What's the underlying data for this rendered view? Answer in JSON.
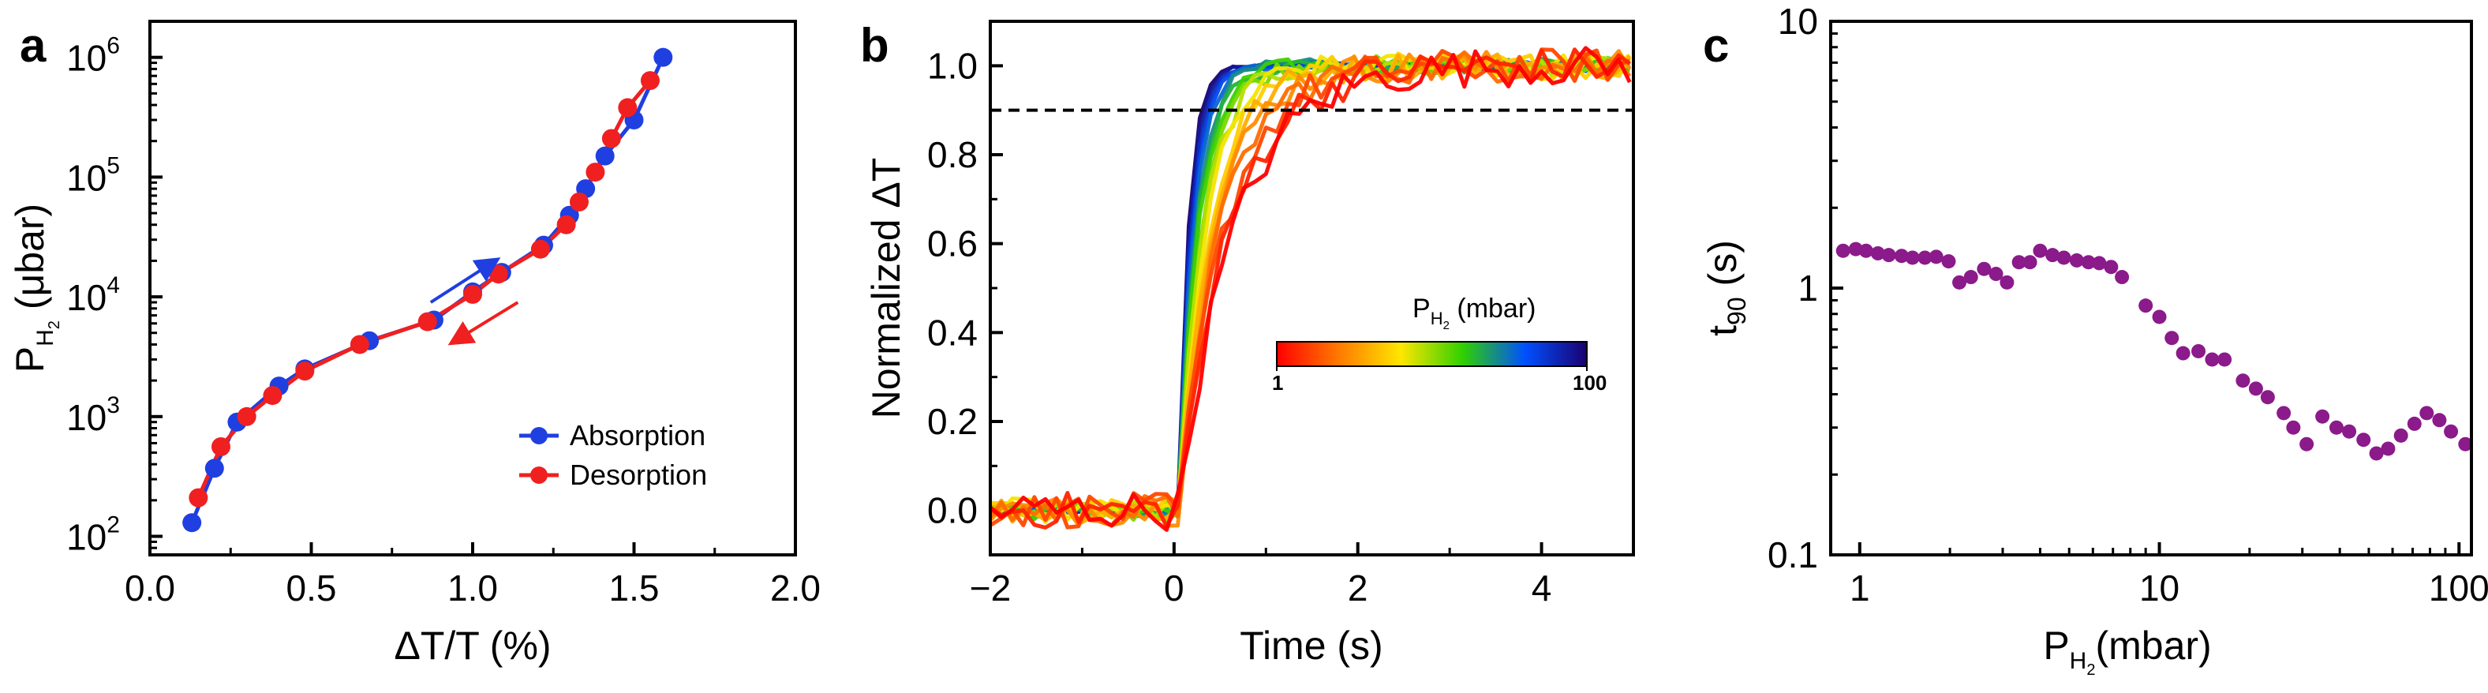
{
  "chart_data": [
    {
      "panel": "a",
      "type": "line",
      "title": "",
      "xlabel": "ΔT/T (%)",
      "ylabel": "P_H2 (μbar)",
      "ylabel_main": "P",
      "ylabel_sub": "H",
      "ylabel_subsub": "2",
      "ylabel_rest": " (μbar)",
      "xscale": "linear",
      "yscale": "log",
      "xlim": [
        0.0,
        2.0
      ],
      "ylim": [
        70,
        2000000
      ],
      "xticks": [
        "0.0",
        "0.5",
        "1.0",
        "1.5",
        "2.0"
      ],
      "xtick_values": [
        0.0,
        0.5,
        1.0,
        1.5,
        2.0
      ],
      "yticks_base": "10",
      "yticks_exp": [
        "2",
        "3",
        "4",
        "5",
        "6"
      ],
      "ytick_values": [
        100,
        1000,
        10000,
        100000,
        1000000
      ],
      "legend_position": "bottom-right",
      "series": [
        {
          "name": "Absorption",
          "color": "#1f3fe0",
          "points": [
            [
              0.13,
              130
            ],
            [
              0.2,
              370
            ],
            [
              0.27,
              900
            ],
            [
              0.4,
              1800
            ],
            [
              0.48,
              2500
            ],
            [
              0.68,
              4300
            ],
            [
              0.88,
              6400
            ],
            [
              1.0,
              11000
            ],
            [
              1.09,
              16000
            ],
            [
              1.22,
              27000
            ],
            [
              1.3,
              48000
            ],
            [
              1.35,
              80000
            ],
            [
              1.41,
              150000
            ],
            [
              1.5,
              300000
            ],
            [
              1.59,
              1000000
            ]
          ]
        },
        {
          "name": "Desorption",
          "color": "#f02020",
          "points": [
            [
              0.15,
              210
            ],
            [
              0.22,
              560
            ],
            [
              0.3,
              1000
            ],
            [
              0.38,
              1500
            ],
            [
              0.48,
              2400
            ],
            [
              0.65,
              4000
            ],
            [
              0.86,
              6200
            ],
            [
              1.0,
              10500
            ],
            [
              1.08,
              15500
            ],
            [
              1.21,
              25000
            ],
            [
              1.29,
              40000
            ],
            [
              1.33,
              62000
            ],
            [
              1.38,
              110000
            ],
            [
              1.43,
              210000
            ],
            [
              1.48,
              380000
            ],
            [
              1.55,
              640000
            ]
          ]
        }
      ],
      "arrows": [
        {
          "color": "#1f3fe0",
          "from": [
            0.87,
            9000
          ],
          "to": [
            1.07,
            20000
          ]
        },
        {
          "color": "#f02020",
          "from": [
            1.14,
            9000
          ],
          "to": [
            0.94,
            4200
          ]
        }
      ]
    },
    {
      "panel": "b",
      "type": "line",
      "title": "",
      "xlabel": "Time (s)",
      "ylabel": "Normalized ΔT",
      "xscale": "linear",
      "yscale": "linear",
      "xlim": [
        -2,
        5
      ],
      "ylim": [
        -0.1,
        1.1
      ],
      "xticks": [
        "−2",
        "0",
        "2",
        "4"
      ],
      "xtick_values": [
        -2,
        0,
        2,
        4
      ],
      "yticks": [
        "0.0",
        "0.2",
        "0.4",
        "0.6",
        "0.8",
        "1.0"
      ],
      "ytick_values": [
        0.0,
        0.2,
        0.4,
        0.6,
        0.8,
        1.0
      ],
      "threshold_line": 0.9,
      "series_description": "normalized response curves, one per hydrogen pressure, colored by pressure from 1 mbar (red) to 100 mbar (dark blue)",
      "curve_count": 18,
      "t90_range_s": [
        0.25,
        1.4
      ],
      "colorbar": {
        "label_main": "P",
        "label_sub": "H",
        "label_subsub": "2",
        "label_rest": " (mbar)",
        "tick_min": "1",
        "tick_max": "100",
        "colors": [
          "#ff0000",
          "#ff7a00",
          "#ffe600",
          "#2fd000",
          "#0050ff",
          "#1a0070"
        ]
      }
    },
    {
      "panel": "c",
      "type": "scatter",
      "title": "",
      "xlabel": "P_H2(mbar)",
      "xlabel_main": "P",
      "xlabel_sub": "H",
      "xlabel_subsub": "2",
      "xlabel_rest": "(mbar)",
      "ylabel_main": "t",
      "ylabel_sub": "90",
      "ylabel_rest": " (s)",
      "xscale": "log",
      "yscale": "log",
      "xlim": [
        0.8,
        110
      ],
      "ylim": [
        0.1,
        10
      ],
      "xticks": [
        "1",
        "10",
        "100"
      ],
      "xtick_values": [
        1,
        10,
        100
      ],
      "yticks": [
        "0.1",
        "1",
        "10"
      ],
      "ytick_values": [
        0.1,
        1,
        10
      ],
      "color": "#8b1a8b",
      "points": [
        [
          0.88,
          1.38
        ],
        [
          0.97,
          1.4
        ],
        [
          1.05,
          1.38
        ],
        [
          1.15,
          1.35
        ],
        [
          1.25,
          1.33
        ],
        [
          1.38,
          1.32
        ],
        [
          1.5,
          1.3
        ],
        [
          1.65,
          1.3
        ],
        [
          1.8,
          1.31
        ],
        [
          1.98,
          1.26
        ],
        [
          2.15,
          1.05
        ],
        [
          2.35,
          1.1
        ],
        [
          2.6,
          1.18
        ],
        [
          2.85,
          1.13
        ],
        [
          3.1,
          1.05
        ],
        [
          3.4,
          1.25
        ],
        [
          3.7,
          1.25
        ],
        [
          4.0,
          1.38
        ],
        [
          4.4,
          1.33
        ],
        [
          4.8,
          1.3
        ],
        [
          5.3,
          1.27
        ],
        [
          5.8,
          1.25
        ],
        [
          6.3,
          1.24
        ],
        [
          6.9,
          1.2
        ],
        [
          7.5,
          1.1
        ],
        [
          9.0,
          0.86
        ],
        [
          10.0,
          0.78
        ],
        [
          11.0,
          0.65
        ],
        [
          12.0,
          0.57
        ],
        [
          13.5,
          0.58
        ],
        [
          15.0,
          0.54
        ],
        [
          16.5,
          0.54
        ],
        [
          19.0,
          0.45
        ],
        [
          21.0,
          0.42
        ],
        [
          23.0,
          0.39
        ],
        [
          26.0,
          0.34
        ],
        [
          28.0,
          0.3
        ],
        [
          31.0,
          0.26
        ],
        [
          35.0,
          0.33
        ],
        [
          39.0,
          0.3
        ],
        [
          43.0,
          0.29
        ],
        [
          48.0,
          0.27
        ],
        [
          53.0,
          0.24
        ],
        [
          58.0,
          0.25
        ],
        [
          64.0,
          0.28
        ],
        [
          71.0,
          0.31
        ],
        [
          78.0,
          0.34
        ],
        [
          86.0,
          0.32
        ],
        [
          94.0,
          0.29
        ],
        [
          105.0,
          0.26
        ]
      ]
    }
  ]
}
